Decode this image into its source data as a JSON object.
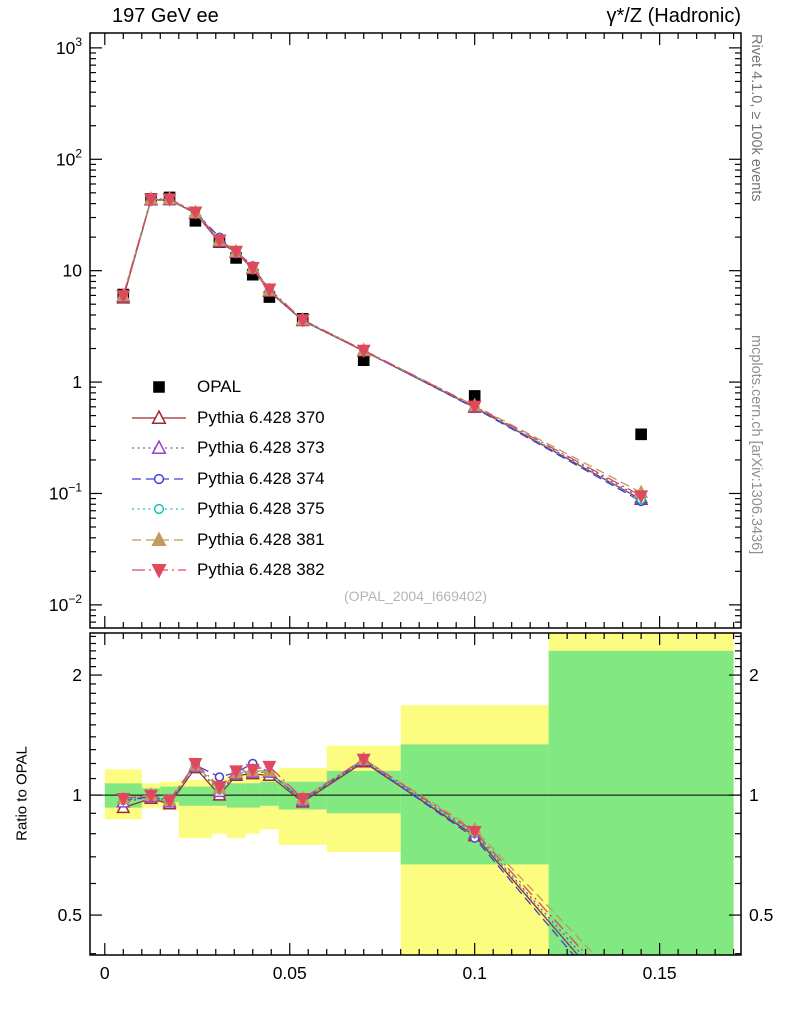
{
  "side_labels": {
    "rivet": "Rivet 4.1.0, ≥ 100k events",
    "mcplots": "mcplots.cern.ch [arXiv:1306.3436]"
  },
  "chart_data": {
    "type": "line",
    "title_left": "197 GeV ee",
    "title_right": "γ*/Z (Hadronic)",
    "watermark": "(OPAL_2004_I669402)",
    "ratio_ylabel": "Ratio to OPAL",
    "xlabel": "",
    "xlim": [
      -0.004,
      0.172
    ],
    "x_ticks": [
      0,
      0.05,
      0.1,
      0.15
    ],
    "x_tick_labels": [
      "0",
      "0.05",
      "0.1",
      "0.15"
    ],
    "main_panel": {
      "ylog": true,
      "ylim": [
        0.0062,
        1360
      ],
      "ytick_exponents": [
        3,
        2,
        1,
        0,
        -1,
        -2
      ]
    },
    "ratio_panel": {
      "ylog": true,
      "ylim": [
        0.397,
        2.55
      ],
      "yticks": [
        2,
        1,
        0.5
      ],
      "ytick_labels": [
        "2",
        "1",
        "0.5"
      ]
    },
    "reference_line": 1,
    "x": [
      0.005,
      0.0125,
      0.0175,
      0.0245,
      0.031,
      0.0355,
      0.04,
      0.0445,
      0.0535,
      0.07,
      0.1,
      0.145
    ],
    "opal": {
      "label": "OPAL",
      "color": "#000000",
      "marker": "square",
      "fill": "filled",
      "values": [
        6.1,
        44,
        45.5,
        28,
        18,
        13,
        9.2,
        5.8,
        3.7,
        1.57,
        0.75,
        0.34
      ]
    },
    "series": [
      {
        "name": "Pythia 6.428 370",
        "color": "#9e2a2b",
        "line": "solid",
        "marker": "triangle-up",
        "fill": "open",
        "ratio": [
          0.93,
          0.98,
          0.95,
          1.17,
          1.0,
          1.12,
          1.13,
          1.12,
          0.96,
          1.21,
          0.79,
          0.26
        ]
      },
      {
        "name": "Pythia 6.428 373",
        "color": "#9a40cc",
        "line": "dotted",
        "marker": "triangle-up",
        "fill": "open",
        "ratio": [
          0.96,
          0.99,
          0.96,
          1.18,
          1.02,
          1.13,
          1.14,
          1.14,
          0.97,
          1.22,
          0.8,
          0.27
        ]
      },
      {
        "name": "Pythia 6.428 374",
        "color": "#4040d9",
        "line": "dashed",
        "marker": "circle",
        "fill": "open",
        "ratio": [
          0.97,
          0.99,
          0.96,
          1.19,
          1.11,
          1.14,
          1.2,
          1.14,
          0.97,
          1.22,
          0.78,
          0.25
        ]
      },
      {
        "name": "Pythia 6.428 375",
        "color": "#17c3b2",
        "line": "dotted",
        "marker": "circle",
        "fill": "open",
        "ratio": [
          0.97,
          1.0,
          0.96,
          1.18,
          1.03,
          1.13,
          1.15,
          1.14,
          0.97,
          1.22,
          0.8,
          0.26
        ]
      },
      {
        "name": "Pythia 6.428 381",
        "color": "#bf9b5e",
        "line": "dashed",
        "marker": "triangle-up",
        "fill": "filled",
        "ratio": [
          0.98,
          1.0,
          0.97,
          1.19,
          1.04,
          1.14,
          1.15,
          1.15,
          0.98,
          1.23,
          0.82,
          0.3
        ]
      },
      {
        "name": "Pythia 6.428 382",
        "color": "#e0485e",
        "line": "dashdot",
        "marker": "triangle-down",
        "fill": "filled",
        "ratio": [
          0.98,
          1.0,
          0.97,
          1.2,
          1.05,
          1.15,
          1.16,
          1.18,
          0.98,
          1.23,
          0.81,
          0.28
        ]
      }
    ],
    "bands": {
      "bin_edges": [
        0,
        0.01,
        0.015,
        0.02,
        0.029,
        0.033,
        0.038,
        0.042,
        0.047,
        0.06,
        0.08,
        0.12,
        0.17
      ],
      "yellow": {
        "color": "#fcfc80",
        "lo": [
          0.87,
          0.93,
          0.92,
          0.78,
          0.8,
          0.78,
          0.8,
          0.82,
          0.75,
          0.72,
          0.3,
          0.25
        ],
        "hi": [
          1.16,
          1.07,
          1.08,
          1.09,
          1.1,
          1.12,
          1.12,
          1.14,
          1.17,
          1.33,
          1.68,
          3.0
        ]
      },
      "green": {
        "color": "#82e882",
        "lo": [
          0.93,
          0.96,
          0.96,
          0.94,
          0.94,
          0.93,
          0.93,
          0.94,
          0.92,
          0.9,
          0.67,
          0.3
        ],
        "hi": [
          1.07,
          1.04,
          1.05,
          1.05,
          1.06,
          1.07,
          1.07,
          1.08,
          1.08,
          1.15,
          1.34,
          2.3
        ]
      }
    }
  }
}
